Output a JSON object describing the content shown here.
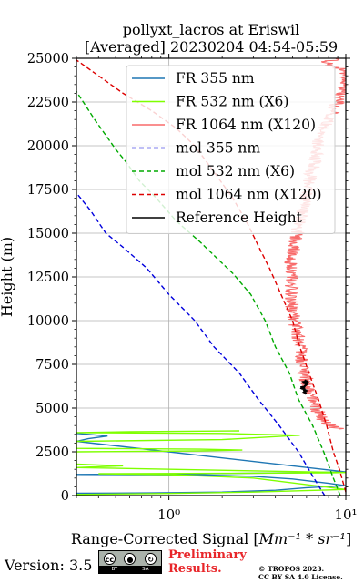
{
  "chart_data": {
    "type": "line",
    "title": "pollyxt_lacros at Eriswil",
    "subtitle": "[Averaged] 20230204 04:54-05:59",
    "xlabel_prefix": "Range-Corrected Signal [",
    "xlabel_math": "Mm⁻¹ * sr⁻¹",
    "xlabel_suffix": "]",
    "ylabel": "Height (m)",
    "xscale": "log",
    "xlim": [
      0.3,
      10
    ],
    "ylim": [
      0,
      25000
    ],
    "yticks": [
      0,
      2500,
      5000,
      7500,
      10000,
      12500,
      15000,
      17500,
      20000,
      22500,
      25000
    ],
    "xticks": [
      {
        "value": 1,
        "label": "10⁰"
      },
      {
        "value": 10,
        "label": "10¹"
      }
    ],
    "grid": true,
    "legend_position": "top-right",
    "series": [
      {
        "name": "FR 355 nm",
        "color": "#1f77b4",
        "style": "solid",
        "points": [
          [
            0.3,
            130
          ],
          [
            0.8,
            150
          ],
          [
            2,
            200
          ],
          [
            4,
            300
          ],
          [
            6,
            450
          ],
          [
            10,
            560
          ],
          [
            8,
            700
          ],
          [
            5,
            950
          ],
          [
            3,
            1100
          ],
          [
            1.5,
            1180
          ],
          [
            0.6,
            1200
          ],
          [
            0.3,
            1210
          ],
          [
            1.5,
            1250
          ],
          [
            5,
            1300
          ],
          [
            10,
            1350
          ],
          [
            0.3,
            3100
          ],
          [
            0.35,
            3250
          ],
          [
            0.45,
            3400
          ],
          [
            0.35,
            3500
          ],
          [
            0.3,
            3550
          ]
        ]
      },
      {
        "name": "FR 532 nm (X6)",
        "color": "#7fff00",
        "style": "solid",
        "points": [
          [
            0.3,
            60
          ],
          [
            1,
            120
          ],
          [
            3,
            200
          ],
          [
            7,
            300
          ],
          [
            10,
            350
          ],
          [
            3,
            1000
          ],
          [
            1,
            1200
          ],
          [
            0.4,
            1250
          ],
          [
            2,
            1270
          ],
          [
            8,
            1300
          ],
          [
            10,
            1320
          ],
          [
            0.3,
            1600
          ],
          [
            0.4,
            1650
          ],
          [
            0.55,
            1700
          ],
          [
            0.4,
            1750
          ],
          [
            0.3,
            1800
          ],
          [
            0.3,
            2500
          ],
          [
            1.5,
            2550
          ],
          [
            2.6,
            2600
          ],
          [
            1.5,
            2650
          ],
          [
            0.3,
            2700
          ],
          [
            0.3,
            3100
          ],
          [
            2,
            3200
          ],
          [
            5.5,
            3450
          ],
          [
            2,
            3550
          ],
          [
            0.3,
            3600
          ],
          [
            0.6,
            3650
          ],
          [
            2.5,
            3700
          ]
        ]
      },
      {
        "name": "FR 1064 nm (X120)",
        "color": "#f86a6a",
        "style": "solid",
        "noisy": true,
        "points": [
          [
            10,
            3800
          ],
          [
            8.5,
            3900
          ],
          [
            7.5,
            4300
          ],
          [
            6.8,
            5000
          ],
          [
            6.2,
            6000
          ],
          [
            5.8,
            7000
          ],
          [
            5.6,
            8000
          ],
          [
            5.4,
            9000
          ],
          [
            5,
            10500
          ],
          [
            4.9,
            12000
          ],
          [
            4.9,
            13500
          ],
          [
            5.3,
            15000
          ],
          [
            5.8,
            16500
          ],
          [
            6.2,
            18000
          ],
          [
            6.8,
            19500
          ],
          [
            7,
            20500
          ],
          [
            8,
            21500
          ],
          [
            9,
            22500
          ],
          [
            10,
            23500
          ],
          [
            10,
            24200
          ],
          [
            7.5,
            24800
          ],
          [
            10,
            25000
          ]
        ]
      },
      {
        "name": "mol 355 nm",
        "color": "#0000dd",
        "style": "dashed",
        "points": [
          [
            7.6,
            0
          ],
          [
            6.6,
            1000
          ],
          [
            5.4,
            2500
          ],
          [
            4.2,
            4000
          ],
          [
            3.2,
            5500
          ],
          [
            2.5,
            7000
          ],
          [
            1.8,
            8500
          ],
          [
            1.4,
            10000
          ],
          [
            1.0,
            11500
          ],
          [
            0.75,
            13000
          ],
          [
            0.55,
            14200
          ],
          [
            0.44,
            15000
          ],
          [
            0.36,
            16300
          ],
          [
            0.3,
            17300
          ]
        ]
      },
      {
        "name": "mol 532 nm (X6)",
        "color": "#00aa00",
        "style": "dashed",
        "points": [
          [
            9.3,
            0
          ],
          [
            8.5,
            1000
          ],
          [
            7.5,
            2500
          ],
          [
            6.5,
            4000
          ],
          [
            5.4,
            5500
          ],
          [
            4.8,
            7000
          ],
          [
            4.0,
            8500
          ],
          [
            3.5,
            10000
          ],
          [
            2.9,
            11500
          ],
          [
            2.3,
            12700
          ],
          [
            1.9,
            13500
          ],
          [
            1.5,
            14500
          ],
          [
            1.1,
            15700
          ],
          [
            0.85,
            17000
          ],
          [
            0.68,
            18000
          ],
          [
            0.58,
            19000
          ],
          [
            0.5,
            19800
          ],
          [
            0.38,
            21500
          ],
          [
            0.3,
            23100
          ]
        ]
      },
      {
        "name": "mol 1064 nm (X120)",
        "color": "#dd0000",
        "style": "dashed",
        "points": [
          [
            10,
            200
          ],
          [
            9.2,
            1500
          ],
          [
            8.5,
            2500
          ],
          [
            7.8,
            4000
          ],
          [
            7.0,
            5500
          ],
          [
            6.2,
            7000
          ],
          [
            5.5,
            8500
          ],
          [
            5.0,
            10000
          ],
          [
            4.3,
            11500
          ],
          [
            3.7,
            13000
          ],
          [
            3.3,
            14000
          ],
          [
            2.8,
            15500
          ],
          [
            2.3,
            17000
          ],
          [
            1.8,
            18500
          ],
          [
            1.4,
            20000
          ],
          [
            1.1,
            21000
          ],
          [
            0.8,
            22000
          ],
          [
            0.55,
            23000
          ],
          [
            0.4,
            24000
          ],
          [
            0.3,
            24900
          ]
        ]
      },
      {
        "name": "Reference Height",
        "color": "#000000",
        "style": "solid",
        "noisy_small": true,
        "points": [
          [
            5.8,
            5800
          ],
          [
            5.9,
            6000
          ],
          [
            5.7,
            6200
          ],
          [
            6.0,
            6400
          ],
          [
            5.8,
            6600
          ]
        ]
      }
    ]
  },
  "footer": {
    "version": "Version: 3.5",
    "cc_labels": [
      "BY",
      "SA"
    ],
    "cc_icons": [
      "cc",
      "person",
      "share"
    ],
    "prelim_line1": "Preliminary",
    "prelim_line2": "Results.",
    "copyright_line1": "© TROPOS 2023.",
    "copyright_line2": "CC BY SA 4.0 License."
  }
}
